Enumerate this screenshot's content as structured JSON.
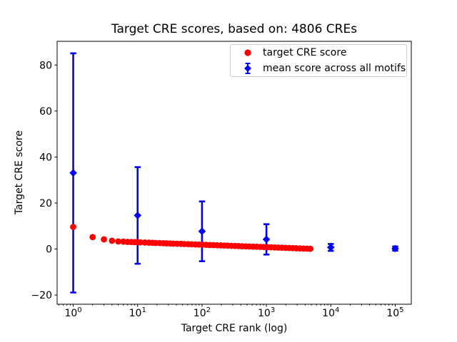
{
  "chart_data": {
    "type": "scatter",
    "title": "Target CRE scores, based on: 4806 CREs",
    "xlabel": "Target CRE rank (log)",
    "ylabel": "Target CRE score",
    "xscale": "log",
    "xlim_log10": [
      -0.25,
      5.25
    ],
    "ylim": [
      -24,
      90.3
    ],
    "xticks": [
      1,
      10,
      100,
      1000,
      10000,
      100000
    ],
    "yticks": [
      -20,
      0,
      20,
      40,
      60,
      80
    ],
    "grid": false,
    "legend_position": "upper-right-inside",
    "legend": [
      {
        "label": "target CRE score",
        "marker": "circle",
        "color": "#ff0000"
      },
      {
        "label": "mean score across all motifs",
        "marker": "diamond-errorbar",
        "color": "#0000ff"
      }
    ],
    "series": [
      {
        "name": "target CRE score",
        "marker": "circle",
        "color": "#ff0000",
        "x": [
          1,
          2,
          3,
          4,
          5,
          6,
          7,
          8,
          9,
          10,
          11,
          13,
          15,
          17,
          19,
          22,
          25,
          28,
          32,
          36,
          41,
          47,
          53,
          61,
          69,
          79,
          90,
          102,
          116,
          132,
          150,
          171,
          194,
          221,
          251,
          286,
          325,
          370,
          421,
          479,
          545,
          620,
          705,
          802,
          912,
          1038,
          1180,
          1343,
          1528,
          1738,
          1977,
          2249,
          2559,
          2911,
          3311,
          3767,
          4285,
          4806
        ],
        "y": [
          9.6,
          5.2,
          4.2,
          3.6,
          3.3,
          3.2,
          3.1,
          3.05,
          3.0,
          2.95,
          2.89,
          2.83,
          2.77,
          2.71,
          2.65,
          2.59,
          2.53,
          2.47,
          2.41,
          2.35,
          2.3,
          2.24,
          2.18,
          2.12,
          2.06,
          2.0,
          1.94,
          1.88,
          1.82,
          1.76,
          1.7,
          1.64,
          1.58,
          1.52,
          1.46,
          1.4,
          1.34,
          1.28,
          1.22,
          1.16,
          1.1,
          1.05,
          0.99,
          0.93,
          0.87,
          0.81,
          0.75,
          0.69,
          0.63,
          0.57,
          0.51,
          0.45,
          0.39,
          0.33,
          0.27,
          0.21,
          0.15,
          0.1
        ]
      },
      {
        "name": "mean score across all motifs",
        "marker": "diamond",
        "color": "#0000ff",
        "x": [
          1,
          10,
          100,
          1000,
          10000,
          100000
        ],
        "y": [
          33.1,
          14.6,
          7.7,
          4.2,
          0.7,
          0.2
        ],
        "yerr": [
          52,
          21,
          13,
          6.6,
          1.5,
          0.9
        ]
      }
    ]
  }
}
